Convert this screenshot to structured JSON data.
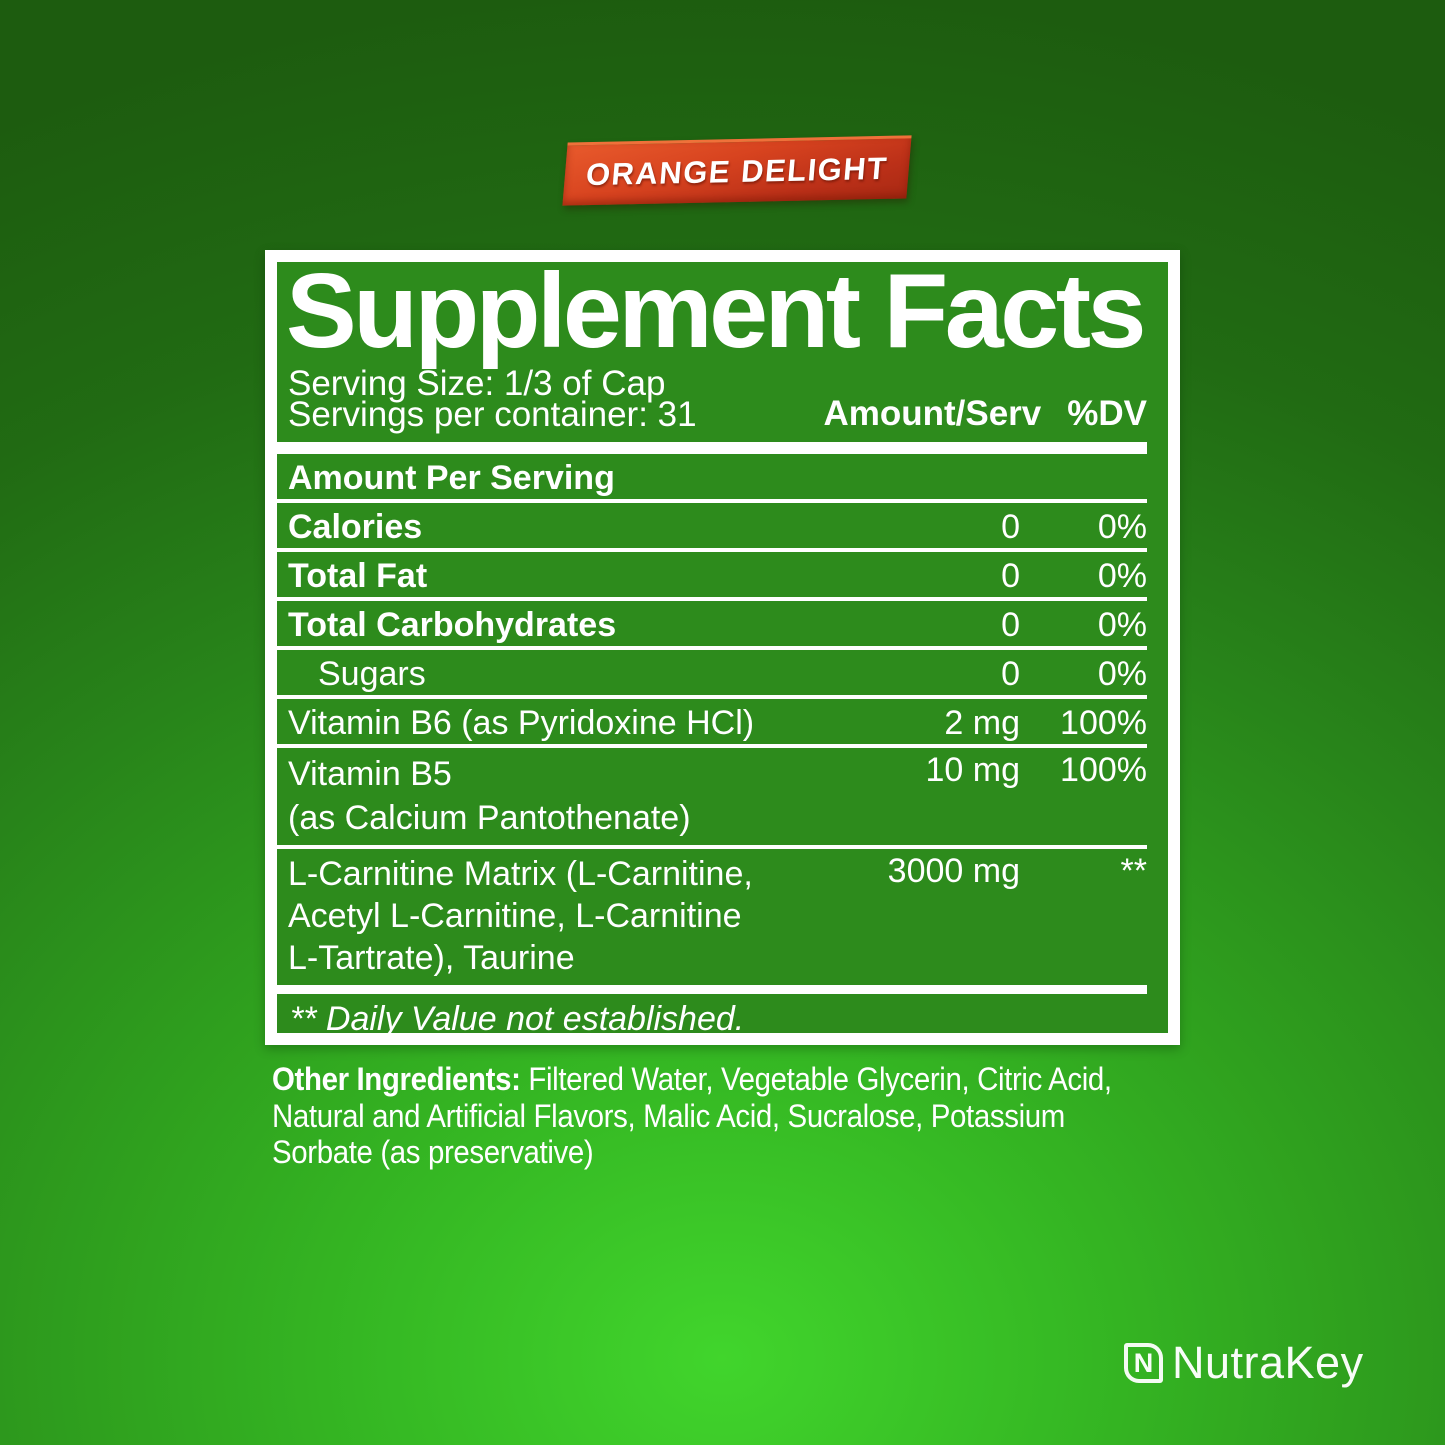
{
  "flavor_badge": {
    "label": "ORANGE DELIGHT"
  },
  "panel": {
    "title": "Supplement Facts",
    "serving_size": "Serving Size: 1/3 of Cap",
    "servings_per_container": "Servings per container: 31",
    "col_amount": "Amount/Serv",
    "col_dv": "%DV",
    "section_header": "Amount Per Serving",
    "rows": [
      {
        "name": "Calories",
        "amount": "0",
        "dv": "0%"
      },
      {
        "name": "Total Fat",
        "amount": "0",
        "dv": "0%"
      },
      {
        "name": "Total Carbohydrates",
        "amount": "0",
        "dv": "0%"
      },
      {
        "name": "Sugars",
        "amount": "0",
        "dv": "0%"
      },
      {
        "name": "Vitamin B6 (as Pyridoxine HCl)",
        "amount": "2 mg",
        "dv": "100%"
      },
      {
        "name_line1": "Vitamin B5",
        "name_line2": "(as Calcium Pantothenate)",
        "amount": "10 mg",
        "dv": "100%"
      },
      {
        "name_line1": "L-Carnitine Matrix (L-Carnitine,",
        "name_line2": "Acetyl L-Carnitine, L-Carnitine",
        "name_line3": "L-Tartrate), Taurine",
        "amount": "3000 mg",
        "dv": "**"
      }
    ],
    "footnote": "** Daily Value not established."
  },
  "other_ingredients": {
    "label": "Other Ingredients:",
    "line1_rest": " Filtered Water, Vegetable Glycerin, Citric Acid,",
    "line2": "Natural and Artificial Flavors, Malic Acid, Sucralose, Potassium",
    "line3": "Sorbate (as preservative)"
  },
  "brand": {
    "icon_letter": "N",
    "name": "NutraKey"
  },
  "colors": {
    "background_bright_green": "#41d52c",
    "background_dark_green": "#1d5c0f",
    "panel_green": "#2d8b1c",
    "panel_border": "#ffffff",
    "badge_orange_top": "#ef713a",
    "badge_red_bottom": "#a82913",
    "text_white": "#ffffff"
  }
}
